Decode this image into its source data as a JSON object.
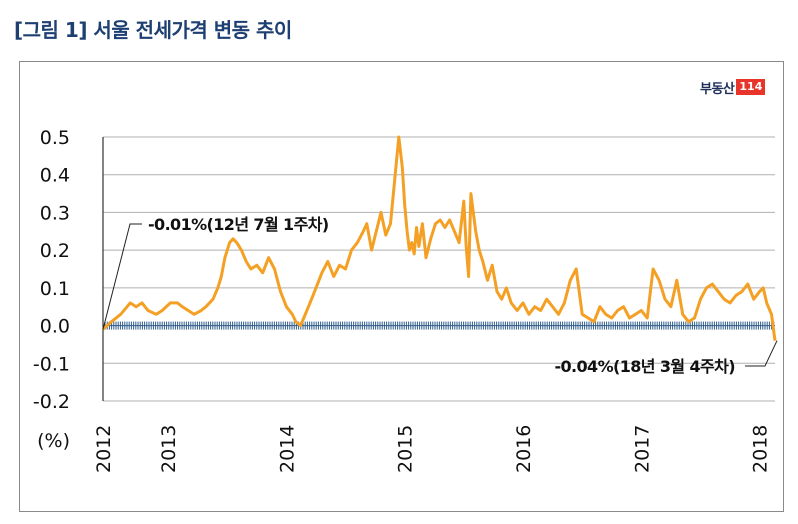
{
  "title": "[그림 1] 서울 전세가격 변동 추이",
  "logo": {
    "text": "부동산",
    "badge": "114"
  },
  "colors": {
    "line": "#f4a025",
    "axis": "#333333",
    "zero_band": "#2e5b8a",
    "grid": "#b0b0b0",
    "title": "#1d3f72"
  },
  "chart_data": {
    "type": "line",
    "title": "",
    "xlabel": "",
    "ylabel": "(%)",
    "ylim": [
      -0.2,
      0.5
    ],
    "yticks": [
      "0.5",
      "0.4",
      "0.3",
      "0.2",
      "0.1",
      "0.0",
      "-0.1",
      "-0.2"
    ],
    "ytick_values": [
      0.5,
      0.4,
      0.3,
      0.2,
      0.1,
      0.0,
      -0.1,
      -0.2
    ],
    "xlim": [
      2012.55,
      2018.23
    ],
    "xticks": [
      "2012",
      "2013",
      "2014",
      "2015",
      "2016",
      "2017",
      "2018"
    ],
    "xtick_values": [
      2012.55,
      2013.1,
      2014.1,
      2015.1,
      2016.1,
      2017.1,
      2018.1
    ],
    "grid": true,
    "series": [
      {
        "x": [
          2012.55,
          2012.62,
          2012.7,
          2012.78,
          2012.83,
          2012.88,
          2012.93,
          2013.0,
          2013.05,
          2013.12,
          2013.18,
          2013.22,
          2013.27,
          2013.32,
          2013.38,
          2013.42,
          2013.48,
          2013.52,
          2013.55,
          2013.58,
          2013.62,
          2013.65,
          2013.68,
          2013.72,
          2013.76,
          2013.8,
          2013.85,
          2013.9,
          2013.95,
          2014.0,
          2014.05,
          2014.1,
          2014.15,
          2014.18,
          2014.22,
          2014.26,
          2014.3,
          2014.35,
          2014.4,
          2014.45,
          2014.5,
          2014.55,
          2014.6,
          2014.65,
          2014.7,
          2014.75,
          2014.78,
          2014.82,
          2014.86,
          2014.9,
          2014.94,
          2014.98,
          2015.02,
          2015.05,
          2015.08,
          2015.1,
          2015.12,
          2015.14,
          2015.16,
          2015.18,
          2015.2,
          2015.22,
          2015.25,
          2015.28,
          2015.32,
          2015.36,
          2015.4,
          2015.44,
          2015.48,
          2015.52,
          2015.56,
          2015.6,
          2015.62,
          2015.64,
          2015.66,
          2015.68,
          2015.7,
          2015.73,
          2015.76,
          2015.8,
          2015.84,
          2015.88,
          2015.92,
          2015.96,
          2016.0,
          2016.05,
          2016.1,
          2016.15,
          2016.2,
          2016.25,
          2016.3,
          2016.35,
          2016.4,
          2016.45,
          2016.5,
          2016.55,
          2016.6,
          2016.65,
          2016.7,
          2016.75,
          2016.8,
          2016.85,
          2016.9,
          2016.95,
          2017.0,
          2017.05,
          2017.1,
          2017.15,
          2017.2,
          2017.25,
          2017.3,
          2017.35,
          2017.4,
          2017.45,
          2017.5,
          2017.55,
          2017.6,
          2017.65,
          2017.7,
          2017.75,
          2017.8,
          2017.85,
          2017.9,
          2017.95,
          2018.0,
          2018.05,
          2018.1,
          2018.13,
          2018.16,
          2018.2,
          2018.23
        ],
        "values": [
          -0.01,
          0.01,
          0.03,
          0.06,
          0.05,
          0.06,
          0.04,
          0.03,
          0.04,
          0.06,
          0.06,
          0.05,
          0.04,
          0.03,
          0.04,
          0.05,
          0.07,
          0.1,
          0.13,
          0.18,
          0.22,
          0.23,
          0.22,
          0.2,
          0.17,
          0.15,
          0.16,
          0.14,
          0.18,
          0.15,
          0.09,
          0.05,
          0.03,
          0.01,
          0.0,
          0.03,
          0.06,
          0.1,
          0.14,
          0.17,
          0.13,
          0.16,
          0.15,
          0.2,
          0.22,
          0.25,
          0.27,
          0.2,
          0.25,
          0.3,
          0.24,
          0.27,
          0.4,
          0.5,
          0.42,
          0.32,
          0.25,
          0.2,
          0.22,
          0.19,
          0.26,
          0.21,
          0.27,
          0.18,
          0.23,
          0.27,
          0.28,
          0.26,
          0.28,
          0.25,
          0.22,
          0.33,
          0.21,
          0.13,
          0.35,
          0.3,
          0.25,
          0.2,
          0.17,
          0.12,
          0.16,
          0.09,
          0.07,
          0.1,
          0.06,
          0.04,
          0.06,
          0.03,
          0.05,
          0.04,
          0.07,
          0.05,
          0.03,
          0.06,
          0.12,
          0.15,
          0.03,
          0.02,
          0.01,
          0.05,
          0.03,
          0.02,
          0.04,
          0.05,
          0.02,
          0.03,
          0.04,
          0.02,
          0.15,
          0.12,
          0.07,
          0.05,
          0.12,
          0.03,
          0.01,
          0.02,
          0.07,
          0.1,
          0.11,
          0.09,
          0.07,
          0.06,
          0.08,
          0.09,
          0.11,
          0.07,
          0.09,
          0.1,
          0.06,
          0.03,
          -0.04
        ]
      }
    ],
    "annotations": [
      {
        "text": "-0.01%(12년 7월 1주차)",
        "x": 2012.55,
        "y": -0.01
      },
      {
        "text": "-0.04%(18년 3월 4주차)",
        "x": 2018.23,
        "y": -0.04
      }
    ]
  }
}
